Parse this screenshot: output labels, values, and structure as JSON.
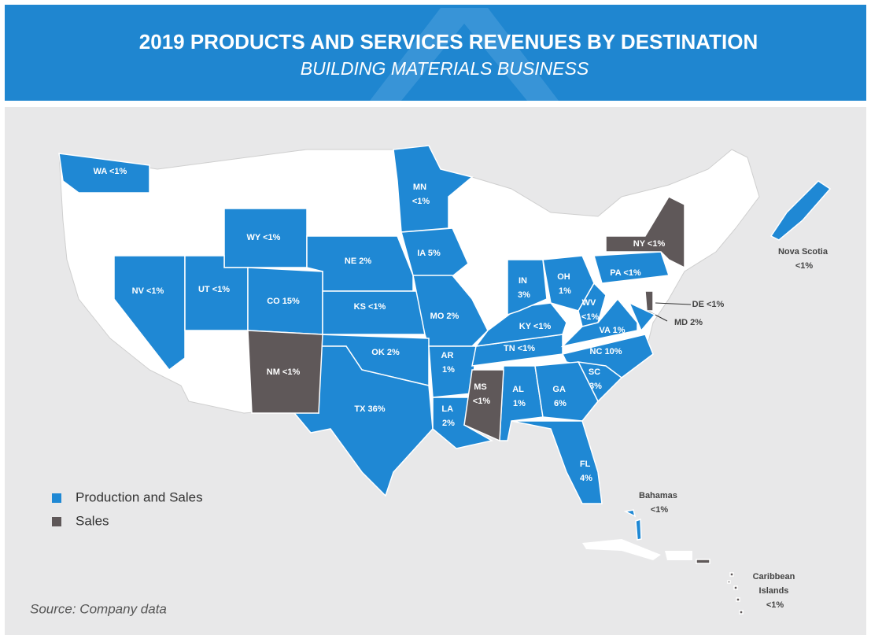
{
  "header": {
    "title": "2019 PRODUCTS AND SERVICES REVENUES BY DESTINATION",
    "subtitle": "BUILDING MATERIALS BUSINESS"
  },
  "legend": [
    {
      "label": "Production and Sales",
      "color": "#1f88d4",
      "regions": [
        {
          "label": "WA <1%"
        },
        {
          "label": "MN <1%"
        },
        {
          "label": "WY <1%"
        },
        {
          "label": "NE 2%"
        },
        {
          "label": "IA 5%"
        },
        {
          "label": "NV <1%"
        },
        {
          "label": "UT <1%"
        },
        {
          "label": "CO 15%"
        },
        {
          "label": "KS <1%"
        },
        {
          "label": "MO 2%"
        },
        {
          "label": "OK 2%"
        },
        {
          "label": "TX 36%"
        },
        {
          "label": "AR 1%"
        },
        {
          "label": "LA 2%"
        },
        {
          "label": "AL 1%"
        },
        {
          "label": "TN <1%"
        },
        {
          "label": "KY <1%"
        },
        {
          "label": "IN 3%"
        },
        {
          "label": "OH 1%"
        },
        {
          "label": "WV <1%"
        },
        {
          "label": "VA 1%"
        },
        {
          "label": "NC 10%"
        },
        {
          "label": "SC 3%"
        },
        {
          "label": "GA 6%"
        },
        {
          "label": "FL 4%"
        },
        {
          "label": "PA <1%"
        },
        {
          "label": "MD 2%"
        },
        {
          "label": "Nova Scotia <1%"
        },
        {
          "label": "Bahamas <1%"
        }
      ]
    },
    {
      "label": "Sales",
      "color": "#5f5859",
      "regions": [
        {
          "label": "NM <1%"
        },
        {
          "label": "MS <1%"
        },
        {
          "label": "NY <1%"
        },
        {
          "label": "DE <1%"
        },
        {
          "label": "Caribbean Islands <1%"
        }
      ]
    }
  ],
  "source": "Source: Company data"
}
